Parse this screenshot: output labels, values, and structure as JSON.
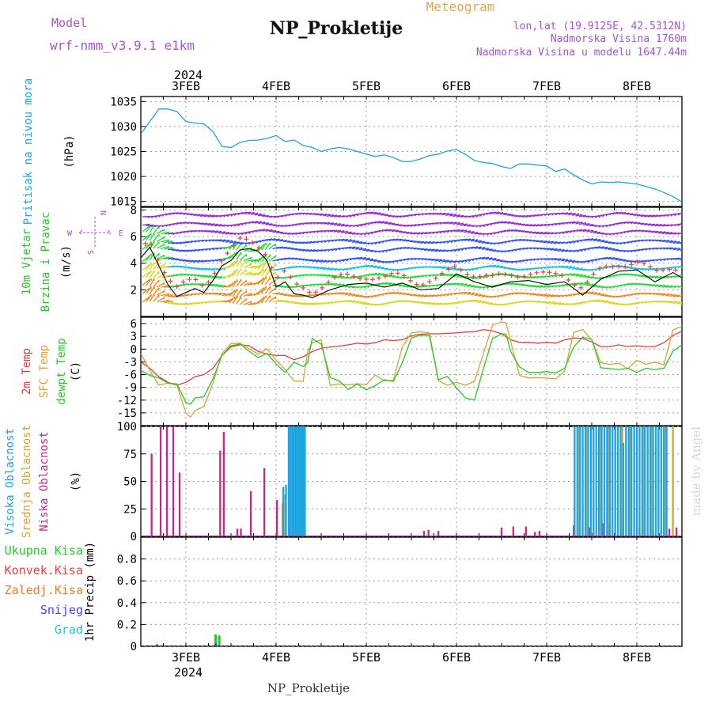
{
  "header": {
    "model_label": "Model",
    "model_name": "wrf-nmm_v3.9.1 e1km",
    "title": "NP_Prokletije",
    "meteogram_label": "Meteogram",
    "lonlat": "lon,lat (19.9125E, 42.5312N)",
    "altitude": "Nadmorska Visina 1760m",
    "model_altitude": "Nadmorska Visina u modelu 1647.44m",
    "bottom_title": "NP_Prokletije",
    "credit": "made by Angel"
  },
  "time_axis": {
    "year": "2024",
    "day_labels": [
      "3FEB",
      "4FEB",
      "5FEB",
      "6FEB",
      "7FEB",
      "8FEB"
    ],
    "day_positions": [
      3,
      4,
      5,
      6,
      7,
      8
    ],
    "range": [
      2.5,
      8.5
    ]
  },
  "compass": {
    "n": "N",
    "s": "S",
    "w": "W",
    "e": "E"
  },
  "colors": {
    "pressure": "#1aa5e6",
    "t2m": "#e83c3c",
    "sfc": "#e0a030",
    "dewpt": "#22cc22",
    "high_cloud": "#1aa5e6",
    "mid_cloud": "#e0a030",
    "low_cloud": "#c0288c",
    "wind_purple": "#9a2bd6",
    "wind_blue": "#3355ee",
    "wind_cyan": "#1cc0d8",
    "wind_green": "#22dd33",
    "wind_yellow": "#d8d820",
    "wind_orange": "#ee8a1a",
    "total_precip": "#22cc22",
    "conv_precip": "#e83c3c",
    "frozen_precip": "#ee7a2a",
    "snow": "#4444dd",
    "graupel": "#22c8c8"
  },
  "chart_data": [
    {
      "type": "line",
      "panel": "pressure",
      "ylabel_lines": [
        "Pritisak na nivou mora",
        "(hPa)"
      ],
      "ylim": [
        1014,
        1036
      ],
      "yticks": [
        1015,
        1020,
        1025,
        1030,
        1035
      ],
      "grid": true,
      "series": [
        {
          "x": [
            2.5,
            2.6,
            2.7,
            2.8,
            2.9,
            3.0,
            3.1,
            3.2,
            3.3,
            3.4,
            3.5,
            3.55,
            3.6,
            3.7,
            3.8,
            3.9,
            4.0,
            4.1,
            4.2,
            4.3,
            4.4,
            4.5,
            4.6,
            4.7,
            4.8,
            4.9,
            5.0,
            5.1,
            5.2,
            5.3,
            5.4,
            5.5,
            5.6,
            5.7,
            5.8,
            5.9,
            6.0,
            6.1,
            6.2,
            6.3,
            6.4,
            6.5,
            6.6,
            6.7,
            6.8,
            6.9,
            7.0,
            7.1,
            7.2,
            7.3,
            7.4,
            7.5,
            7.6,
            7.7,
            7.8,
            7.9,
            8.0,
            8.1,
            8.2,
            8.3,
            8.4,
            8.5
          ],
          "values": [
            1028.5,
            1031,
            1033.5,
            1033.5,
            1033,
            1031,
            1030.7,
            1030.5,
            1029,
            1026,
            1025.8,
            1026.3,
            1026.8,
            1027.2,
            1027.3,
            1027.6,
            1028.2,
            1027.0,
            1027.3,
            1026.2,
            1025.8,
            1025.0,
            1025.5,
            1025.8,
            1025.5,
            1025.0,
            1024.5,
            1024.0,
            1024.3,
            1023.8,
            1023.0,
            1023.0,
            1023.5,
            1024.2,
            1024.5,
            1025.1,
            1025.4,
            1024.4,
            1023.2,
            1022.8,
            1022.6,
            1022.0,
            1021.6,
            1022.5,
            1022.5,
            1022.3,
            1022.1,
            1021.0,
            1021.5,
            1020.3,
            1019.3,
            1018.5,
            1018.9,
            1018.8,
            1018.9,
            1018.7,
            1018.5,
            1018.0,
            1017.5,
            1016.8,
            1016.0,
            1014.9
          ]
        }
      ]
    },
    {
      "type": "scatter",
      "panel": "wind",
      "ylabel_lines": [
        "10m Vjetar",
        "Brzina i Pravac",
        "(m/s)"
      ],
      "ylim": [
        0,
        8.2
      ],
      "yticks": [
        2,
        4,
        6,
        8
      ],
      "grid": true,
      "series": [
        {
          "name": "speed",
          "x": [
            2.5,
            2.6,
            2.7,
            2.8,
            2.9,
            3.0,
            3.1,
            3.2,
            3.3,
            3.4,
            3.5,
            3.6,
            3.7,
            3.8,
            3.9,
            4.0,
            4.1,
            4.2,
            4.3,
            4.4,
            4.6,
            4.8,
            5.0,
            5.2,
            5.4,
            5.6,
            5.8,
            6.0,
            6.2,
            6.4,
            6.6,
            6.8,
            7.0,
            7.2,
            7.4,
            7.6,
            7.8,
            8.0,
            8.2,
            8.4,
            8.5
          ],
          "values": [
            4.4,
            5.2,
            3.8,
            2.4,
            1.5,
            1.8,
            2.1,
            1.8,
            2.7,
            3.8,
            4.2,
            5.0,
            5.1,
            4.9,
            4.2,
            2.2,
            2.6,
            1.7,
            1.6,
            1.4,
            2.0,
            2.4,
            2.5,
            2.2,
            2.5,
            2.0,
            2.1,
            3.2,
            2.6,
            2.2,
            2.6,
            2.7,
            2.4,
            2.6,
            1.6,
            2.8,
            3.4,
            3.5,
            2.6,
            3.3,
            2.9
          ]
        }
      ],
      "arrow_levels": [
        1.0,
        1.6,
        2.3,
        3.0,
        3.6,
        4.2,
        5.0,
        5.6,
        6.3,
        6.9,
        7.6
      ]
    },
    {
      "type": "line",
      "panel": "temperature",
      "ylabel_lines": [
        "2m Temp",
        "SFC Temp",
        "dewpt Temp",
        "(C)"
      ],
      "ylim": [
        -18,
        7.5
      ],
      "yticks": [
        6,
        3,
        0,
        -3,
        -6,
        -9,
        -12,
        -15
      ],
      "grid": true,
      "series": [
        {
          "name": "2m Temp",
          "x": [
            2.5,
            2.6,
            2.7,
            2.8,
            2.9,
            3.0,
            3.1,
            3.2,
            3.3,
            3.4,
            3.5,
            3.6,
            3.7,
            3.8,
            3.9,
            4.0,
            4.1,
            4.2,
            4.3,
            4.4,
            4.5,
            4.6,
            4.7,
            4.8,
            4.9,
            5.0,
            5.1,
            5.2,
            5.3,
            5.4,
            5.5,
            5.6,
            5.7,
            5.8,
            5.9,
            6.0,
            6.1,
            6.2,
            6.3,
            6.4,
            6.5,
            6.6,
            6.7,
            6.8,
            6.9,
            7.0,
            7.1,
            7.2,
            7.3,
            7.4,
            7.5,
            7.6,
            7.7,
            7.8,
            7.9,
            8.0,
            8.1,
            8.2,
            8.3,
            8.4,
            8.5
          ],
          "values": [
            -3,
            -4.5,
            -6.5,
            -7.8,
            -8.5,
            -7.8,
            -6.5,
            -6,
            -4.5,
            -1.5,
            0.5,
            1,
            0.8,
            -0.5,
            -1.2,
            -1.5,
            -1.5,
            -2.5,
            -1.8,
            -0.6,
            0.2,
            0.5,
            0.7,
            1,
            1.4,
            1.2,
            1.5,
            2.2,
            2,
            2.2,
            3.1,
            3.5,
            3.6,
            3.6,
            3.7,
            3.8,
            4,
            4.1,
            4.6,
            4.3,
            3.6,
            2.2,
            1.6,
            1.6,
            1.4,
            1.6,
            1.4,
            2.2,
            2.6,
            2.5,
            1.7,
            0.6,
            0.6,
            1,
            0.6,
            0.8,
            0.6,
            0.6,
            1.5,
            3.2,
            4.2
          ]
        },
        {
          "name": "SFC Temp",
          "x": [
            2.5,
            2.6,
            2.7,
            2.8,
            2.9,
            3.0,
            3.05,
            3.1,
            3.2,
            3.3,
            3.4,
            3.5,
            3.6,
            3.7,
            3.8,
            3.9,
            4.0,
            4.1,
            4.2,
            4.3,
            4.35,
            4.4,
            4.5,
            4.6,
            4.7,
            4.8,
            4.9,
            5.0,
            5.1,
            5.2,
            5.3,
            5.4,
            5.5,
            5.6,
            5.7,
            5.8,
            5.9,
            6.0,
            6.1,
            6.2,
            6.3,
            6.4,
            6.5,
            6.55,
            6.6,
            6.7,
            6.8,
            6.9,
            7.0,
            7.1,
            7.2,
            7.3,
            7.4,
            7.5,
            7.6,
            7.7,
            7.8,
            7.9,
            8.0,
            8.1,
            8.2,
            8.3,
            8.4,
            8.5
          ],
          "values": [
            -1,
            -5,
            -8.5,
            -8,
            -8.5,
            -15,
            -16,
            -14.5,
            -13.5,
            -8,
            -1,
            1.3,
            1.4,
            0.1,
            -1.2,
            0.1,
            -2.6,
            -4.8,
            -7.5,
            -7.6,
            -0.6,
            1.5,
            2.2,
            -8.5,
            -8.2,
            -8.4,
            -8.2,
            -8.3,
            -6.1,
            -7.5,
            -7.3,
            0.6,
            3.8,
            4.1,
            3.8,
            -7.5,
            -8.5,
            -7.8,
            -8.5,
            -7.6,
            -1,
            5.6,
            6.4,
            6.2,
            1.9,
            -6.2,
            -6.8,
            -6.7,
            -6.8,
            -7,
            -5.2,
            3.9,
            4.6,
            2.2,
            -3.2,
            -3.6,
            -3.3,
            -4.6,
            -2.6,
            -3.6,
            -3.1,
            -3.7,
            4.5,
            5.4
          ]
        },
        {
          "name": "dewpt Temp",
          "x": [
            2.5,
            2.6,
            2.7,
            2.8,
            2.9,
            3.0,
            3.05,
            3.1,
            3.2,
            3.3,
            3.4,
            3.5,
            3.6,
            3.7,
            3.8,
            3.9,
            4.0,
            4.1,
            4.2,
            4.3,
            4.35,
            4.4,
            4.5,
            4.6,
            4.7,
            4.8,
            4.9,
            5.0,
            5.1,
            5.2,
            5.3,
            5.4,
            5.5,
            5.6,
            5.7,
            5.8,
            5.9,
            6.0,
            6.1,
            6.2,
            6.3,
            6.4,
            6.5,
            6.55,
            6.6,
            6.7,
            6.8,
            6.9,
            7.0,
            7.1,
            7.2,
            7.3,
            7.4,
            7.5,
            7.6,
            7.7,
            7.8,
            7.9,
            8.0,
            8.1,
            8.2,
            8.3,
            8.4,
            8.5
          ],
          "values": [
            -5,
            -6.2,
            -6.8,
            -8,
            -8.2,
            -12.5,
            -13,
            -11.5,
            -11.2,
            -7,
            -1.5,
            0.8,
            1.2,
            -0.5,
            -2,
            -1,
            -3.5,
            -5.5,
            -3.1,
            -4.1,
            -3.2,
            2.5,
            1.2,
            -6.7,
            -7.5,
            -9.5,
            -8.2,
            -9.6,
            -8.6,
            -7.2,
            -7.6,
            -3.2,
            2.6,
            3.3,
            3.2,
            -7.2,
            -6.4,
            -9.1,
            -11.5,
            -12,
            -4.5,
            2.5,
            3.6,
            3.5,
            -0.5,
            -4.2,
            -5.5,
            -5.5,
            -5.3,
            -5.6,
            -4.5,
            0.5,
            2.8,
            2.3,
            -4.4,
            -4.6,
            -4.8,
            -4.5,
            -5.5,
            -4.5,
            -4.8,
            -4.5,
            -0.5,
            1
          ]
        }
      ]
    },
    {
      "type": "bar",
      "panel": "clouds",
      "ylabel_lines": [
        "Visoka Oblacnost",
        "Srednja Oblacnost",
        "Niska Oblacnost",
        "(%)"
      ],
      "ylim": [
        0,
        100
      ],
      "yticks": [
        0,
        25,
        50,
        75,
        100
      ],
      "grid": true,
      "series": [
        {
          "name": "Niska Oblacnost",
          "x": [
            2.62,
            2.72,
            2.79,
            2.86,
            2.93,
            3.38,
            3.42,
            3.57,
            3.61,
            3.72,
            3.87,
            4.01,
            5.64,
            5.69,
            5.8,
            6.5,
            6.63,
            6.77,
            6.87,
            6.92,
            7.3,
            7.48,
            7.62,
            7.7,
            7.84,
            8.03,
            8.18,
            8.36,
            8.44
          ],
          "values": [
            75,
            100,
            100,
            100,
            58,
            78,
            95,
            7,
            7,
            41,
            62,
            33,
            5,
            6,
            5,
            8,
            9,
            9,
            4,
            5,
            10,
            8,
            12,
            10,
            6,
            8,
            6,
            7,
            8
          ]
        },
        {
          "name": "Srednja Oblacnost",
          "x": [
            4.07,
            4.1,
            4.15,
            4.19,
            4.23,
            4.27,
            4.3,
            7.36,
            7.44,
            7.52,
            7.6,
            7.68,
            7.76,
            7.84,
            7.92,
            8.0,
            8.08,
            8.16,
            8.24,
            8.32,
            8.4
          ],
          "values": [
            30,
            38,
            50,
            100,
            100,
            100,
            100,
            100,
            100,
            100,
            100,
            100,
            100,
            100,
            100,
            100,
            100,
            100,
            100,
            100,
            100
          ]
        },
        {
          "name": "Visoka Oblacnost",
          "x": [
            4.08,
            4.11,
            4.14,
            4.16,
            4.18,
            4.2,
            4.22,
            4.24,
            4.26,
            4.28,
            4.3,
            4.32,
            7.31,
            7.34,
            7.37,
            7.4,
            7.43,
            7.46,
            7.49,
            7.52,
            7.55,
            7.58,
            7.61,
            7.64,
            7.67,
            7.7,
            7.73,
            7.76,
            7.79,
            7.82,
            7.85,
            7.88,
            7.91,
            7.94,
            7.97,
            8.0,
            8.03,
            8.06,
            8.09,
            8.12,
            8.15,
            8.18,
            8.21,
            8.24,
            8.27,
            8.3,
            8.33
          ],
          "values": [
            45,
            47,
            100,
            100,
            100,
            100,
            100,
            100,
            100,
            100,
            100,
            100,
            100,
            100,
            100,
            100,
            100,
            100,
            100,
            100,
            100,
            100,
            100,
            100,
            100,
            100,
            100,
            100,
            100,
            100,
            85,
            100,
            100,
            100,
            100,
            100,
            100,
            100,
            100,
            100,
            100,
            100,
            100,
            100,
            100,
            100,
            100
          ]
        }
      ]
    },
    {
      "type": "bar",
      "panel": "precipitation",
      "ylabel_lines": [
        "1hr Precip (mm)"
      ],
      "legend": [
        "Ukupna Kisa",
        "Konvek.Kisa",
        "Zaledj.Kisa",
        "Snijeg",
        "Grad"
      ],
      "ylim": [
        0,
        1
      ],
      "yticks": [
        0,
        0.2,
        0.4,
        0.6,
        0.8
      ],
      "grid": true,
      "series": [
        {
          "name": "Ukupna Kisa",
          "x": [
            2.68,
            3.33,
            3.37
          ],
          "values": [
            0.02,
            0.11,
            0.1
          ]
        },
        {
          "name": "Snijeg",
          "x": [
            3.33
          ],
          "values": [
            0.03
          ]
        }
      ]
    }
  ]
}
